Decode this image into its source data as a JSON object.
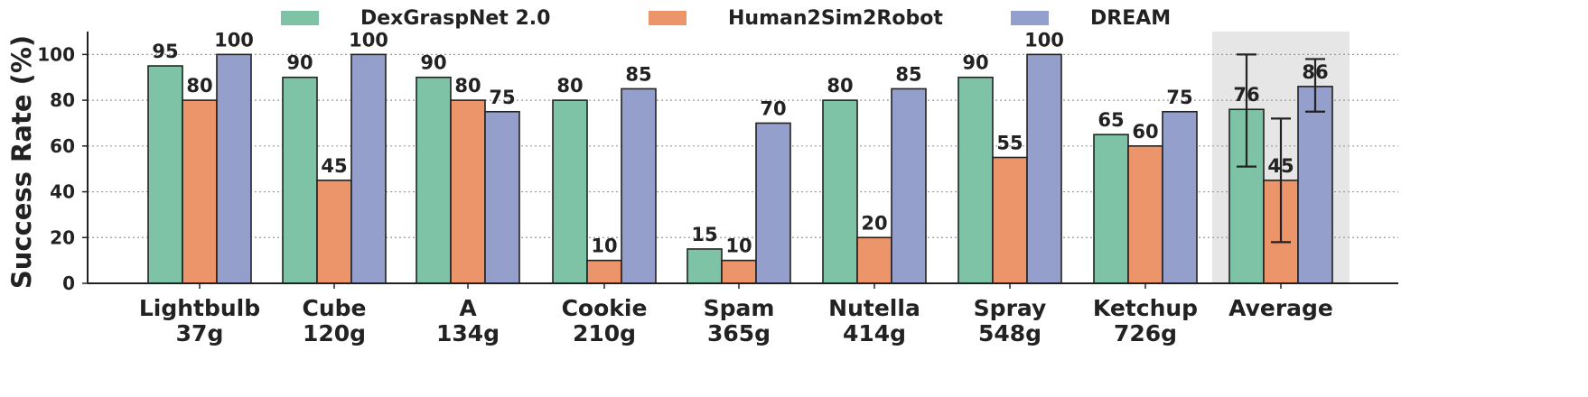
{
  "chart_data": {
    "type": "bar",
    "title": "",
    "xlabel": "",
    "ylabel": "Success Rate (%)",
    "ylim": [
      0,
      110
    ],
    "yticks": [
      0,
      20,
      40,
      60,
      80,
      100
    ],
    "grid": "horizontal-dotted",
    "legend_position": "top",
    "categories": [
      {
        "name": "Lightbulb",
        "weight": "37g"
      },
      {
        "name": "Cube",
        "weight": "120g"
      },
      {
        "name": "A",
        "weight": "134g"
      },
      {
        "name": "Cookie",
        "weight": "210g"
      },
      {
        "name": "Spam",
        "weight": "365g"
      },
      {
        "name": "Nutella",
        "weight": "414g"
      },
      {
        "name": "Spray",
        "weight": "548g"
      },
      {
        "name": "Ketchup",
        "weight": "726g"
      },
      {
        "name": "Average",
        "weight": ""
      }
    ],
    "highlighted_category": "Average",
    "series": [
      {
        "name": "DexGraspNet 2.0",
        "color": "#7fc3a7",
        "values": [
          95,
          90,
          90,
          80,
          15,
          80,
          90,
          65,
          76
        ],
        "average_error": [
          51,
          100
        ]
      },
      {
        "name": "Human2Sim2Robot",
        "color": "#ec956b",
        "values": [
          80,
          45,
          80,
          10,
          10,
          20,
          55,
          60,
          45
        ],
        "average_error": [
          18,
          72
        ]
      },
      {
        "name": "DREAM",
        "color": "#94a0cb",
        "values": [
          100,
          100,
          75,
          85,
          70,
          85,
          100,
          75,
          86
        ],
        "average_error": [
          75,
          98
        ]
      }
    ]
  }
}
